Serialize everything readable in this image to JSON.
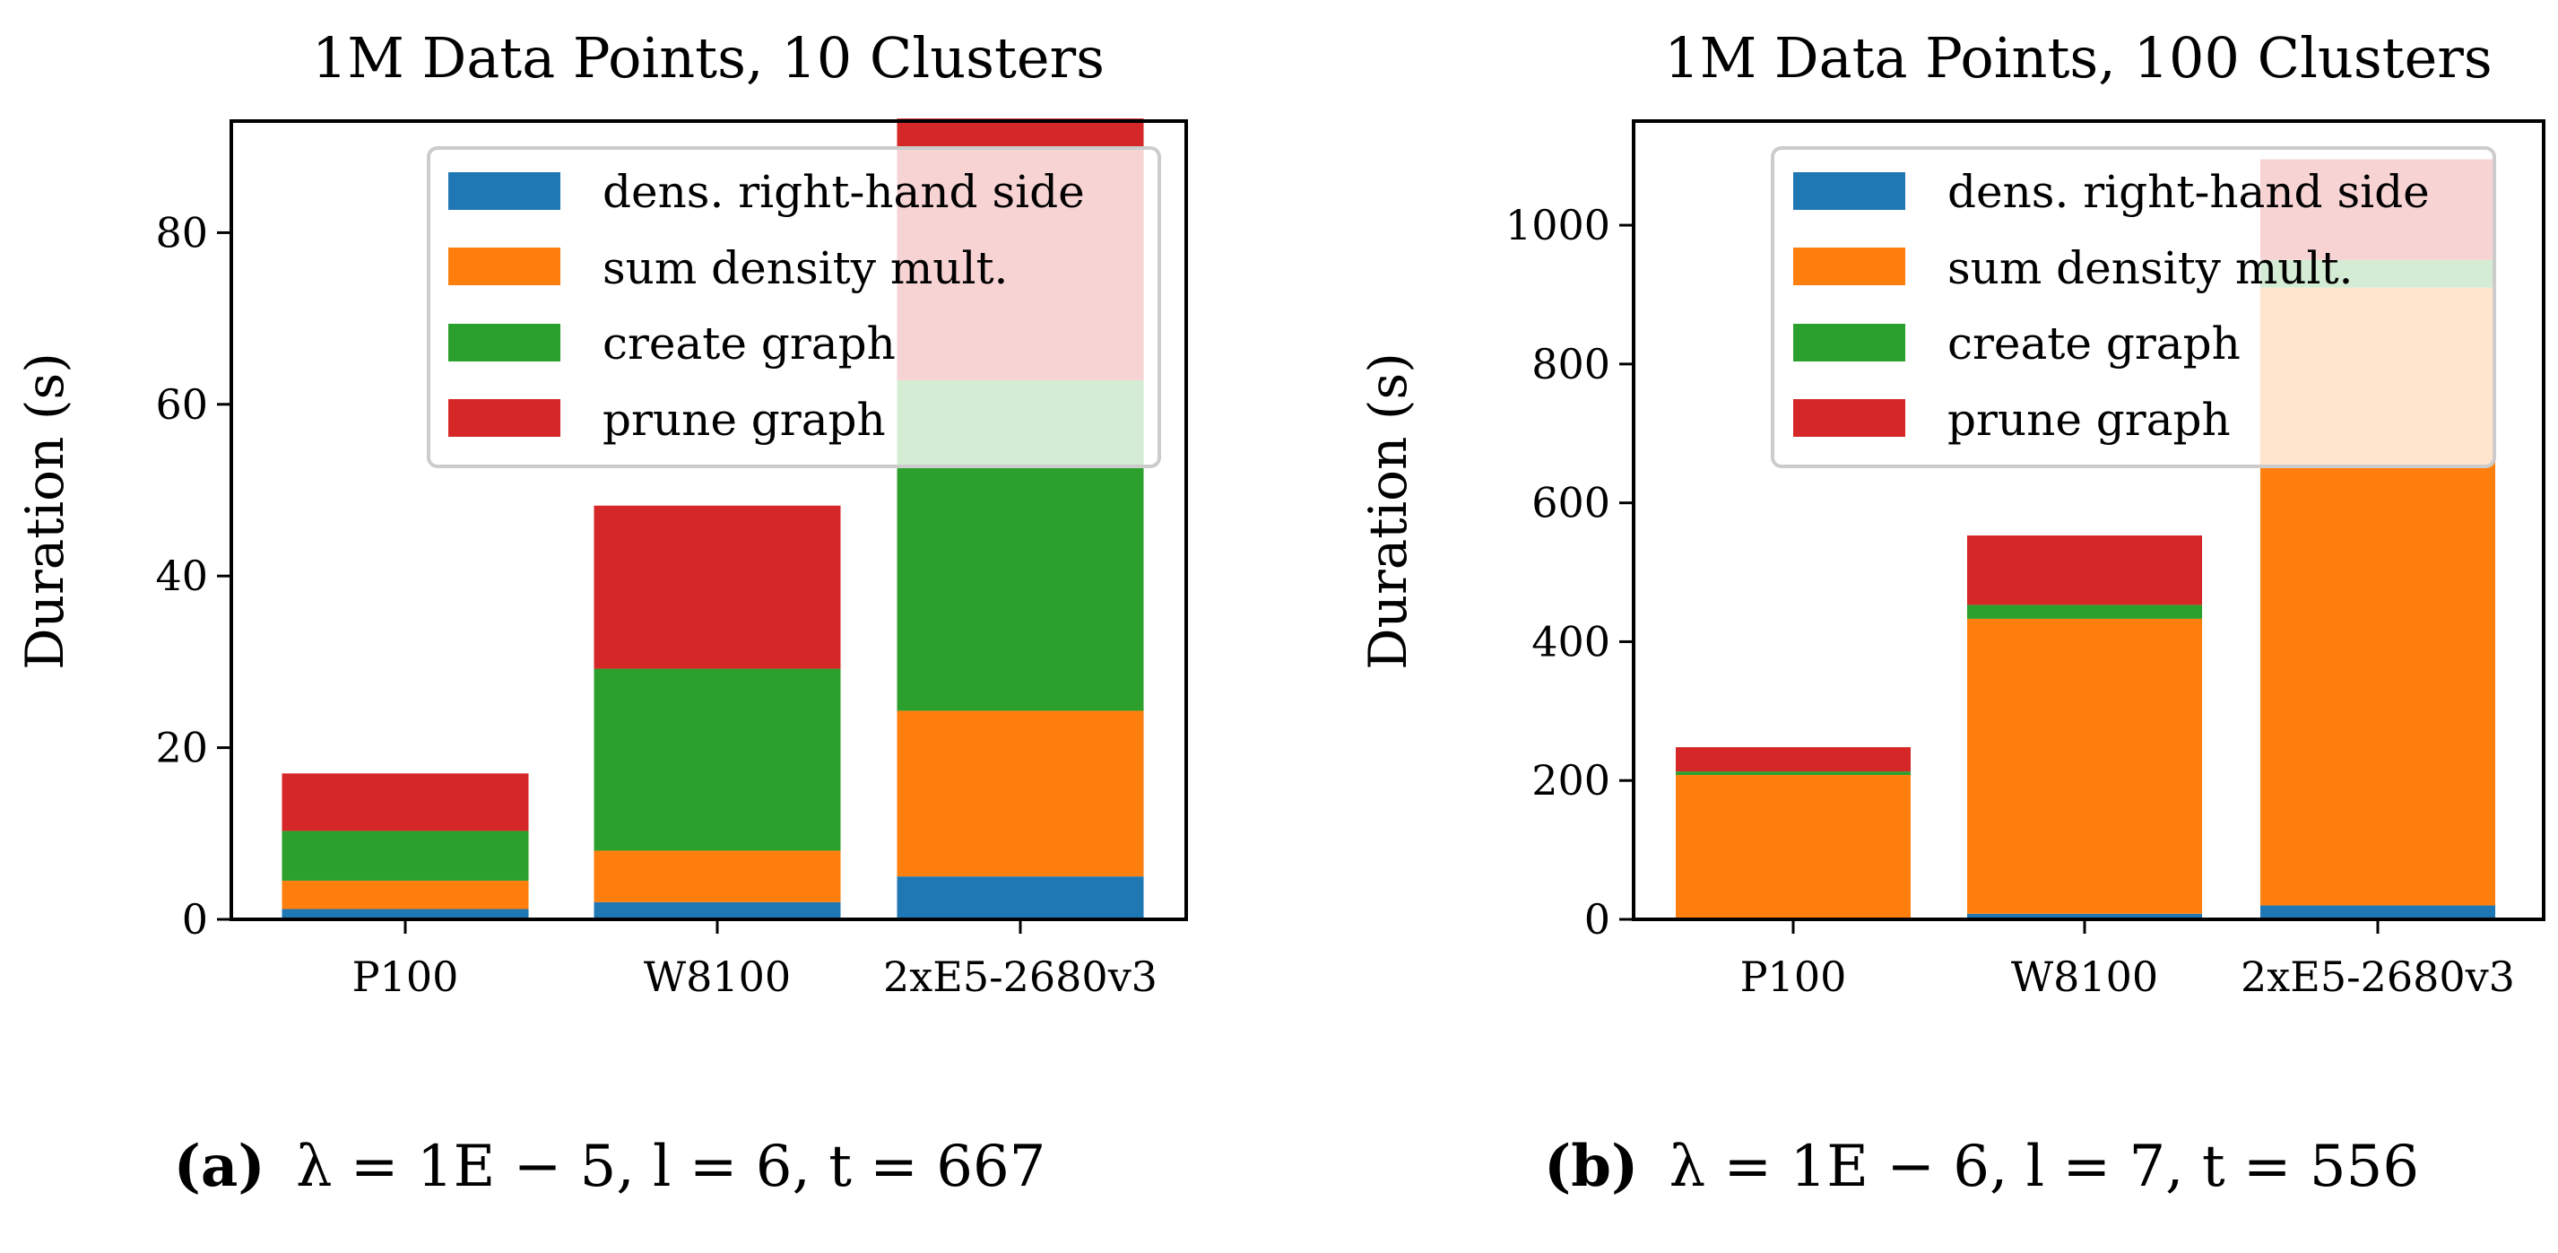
{
  "colors": {
    "dens_rhs": "#1f77b4",
    "sum_density": "#ff7f0e",
    "create_graph": "#2ca02c",
    "prune_graph": "#d62728"
  },
  "legend_location": "top-right",
  "chart_data": [
    {
      "type": "bar",
      "stacked": true,
      "title": "1M Data Points, 10 Clusters",
      "ylabel": "Duration (s)",
      "ylim": [
        0,
        93
      ],
      "yticks": [
        0,
        20,
        40,
        60,
        80
      ],
      "ytick_labels": [
        "0",
        "20",
        "40",
        "60",
        "80"
      ],
      "categories": [
        "P100",
        "W8100",
        "2xE5-2680v3"
      ],
      "series": [
        {
          "name": "dens. right-hand side",
          "values": [
            1.2,
            2.0,
            5.0
          ]
        },
        {
          "name": "sum density mult.",
          "values": [
            3.3,
            6.0,
            19.3
          ]
        },
        {
          "name": "create graph",
          "values": [
            5.8,
            21.2,
            38.5
          ]
        },
        {
          "name": "prune graph",
          "values": [
            6.7,
            19.0,
            30.5
          ]
        }
      ],
      "caption": {
        "label": "(a)",
        "text": "λ = 1E − 5, l = 6, t = 667"
      }
    },
    {
      "type": "bar",
      "stacked": true,
      "title": "1M Data Points, 100 Clusters",
      "ylabel": "Duration (s)",
      "ylim": [
        0,
        1150
      ],
      "yticks": [
        0,
        200,
        400,
        600,
        800,
        1000
      ],
      "ytick_labels": [
        "0",
        "200",
        "400",
        "600",
        "800",
        "1000"
      ],
      "categories": [
        "P100",
        "W8100",
        "2xE5-2680v3"
      ],
      "series": [
        {
          "name": "dens. right-hand side",
          "values": [
            2,
            8,
            20
          ]
        },
        {
          "name": "sum density mult.",
          "values": [
            206,
            425,
            890
          ]
        },
        {
          "name": "create graph",
          "values": [
            5,
            20,
            40
          ]
        },
        {
          "name": "prune graph",
          "values": [
            35,
            100,
            145
          ]
        }
      ],
      "caption": {
        "label": "(b)",
        "text": "λ = 1E − 6, l = 7, t = 556"
      }
    }
  ]
}
